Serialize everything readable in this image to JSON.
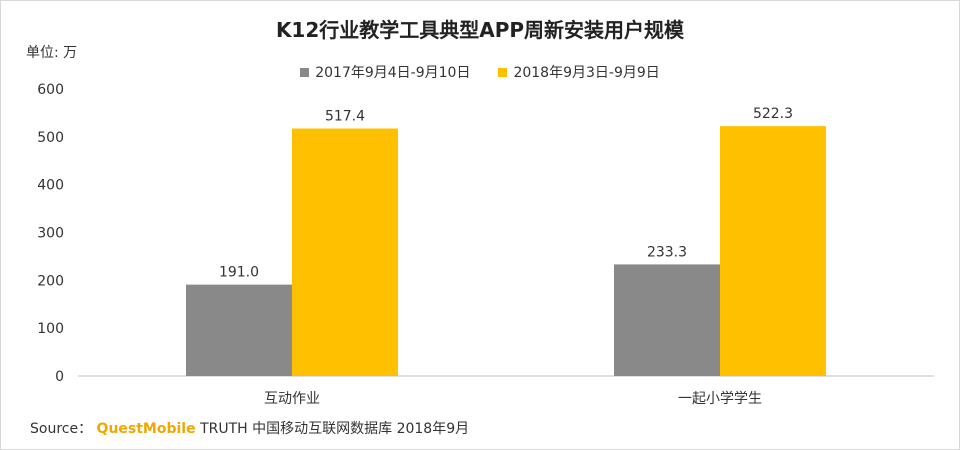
{
  "chart_data": {
    "type": "bar",
    "title": "K12行业教学工具典型APP周新安装用户规模",
    "ylabel": "单位: 万",
    "xlabel": "",
    "categories": [
      "互动作业",
      "一起小学学生"
    ],
    "series": [
      {
        "name": "2017年9月4日-9月10日",
        "values": [
          191.0,
          233.3
        ],
        "color": "#898989"
      },
      {
        "name": "2018年9月3日-9月9日",
        "values": [
          517.4,
          522.3
        ],
        "color": "#ffc000"
      }
    ],
    "value_labels": [
      [
        "191.0",
        "233.3"
      ],
      [
        "517.4",
        "522.3"
      ]
    ],
    "ylim": [
      0,
      600
    ],
    "yticks": [
      0,
      100,
      200,
      300,
      400,
      500,
      600
    ],
    "grid": false,
    "legend_position": "top-center"
  },
  "source": {
    "prefix": "Source：",
    "brand": "QuestMobile",
    "text": "TRUTH 中国移动互联网数据库 2018年9月"
  }
}
